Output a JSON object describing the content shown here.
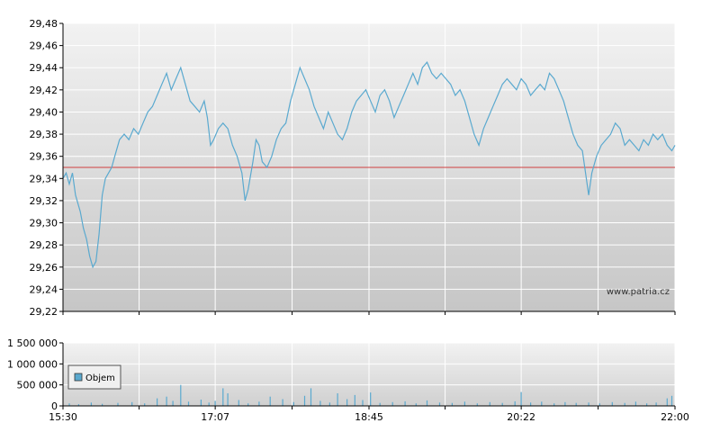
{
  "watermark": "www.patria.cz",
  "colors": {
    "line": "#5aa9cf",
    "reference": "#d04040",
    "volume": "#5aa9cf",
    "grid": "#ffffff",
    "axis": "#000000",
    "bg_top": "#f0f0f0",
    "bg_bottom": "#c8c8c8"
  },
  "chart_data": [
    {
      "type": "line",
      "name": "price",
      "ylim": [
        29.22,
        29.48
      ],
      "y_ticks": [
        "29,48",
        "29,46",
        "29,44",
        "29,42",
        "29,40",
        "29,38",
        "29,36",
        "29,34",
        "29,32",
        "29,30",
        "29,28",
        "29,26",
        "29,24",
        "29,22"
      ],
      "reference_line": 29.35,
      "x_range": [
        "15:30",
        "22:00"
      ],
      "points": [
        [
          "15:30",
          29.34
        ],
        [
          "15:32",
          29.345
        ],
        [
          "15:34",
          29.335
        ],
        [
          "15:36",
          29.345
        ],
        [
          "15:38",
          29.325
        ],
        [
          "15:41",
          29.31
        ],
        [
          "15:43",
          29.295
        ],
        [
          "15:45",
          29.285
        ],
        [
          "15:47",
          29.27
        ],
        [
          "15:49",
          29.26
        ],
        [
          "15:51",
          29.265
        ],
        [
          "15:53",
          29.29
        ],
        [
          "15:55",
          29.325
        ],
        [
          "15:57",
          29.34
        ],
        [
          "15:59",
          29.345
        ],
        [
          "16:01",
          29.35
        ],
        [
          "16:03",
          29.36
        ],
        [
          "16:06",
          29.375
        ],
        [
          "16:09",
          29.38
        ],
        [
          "16:12",
          29.375
        ],
        [
          "16:15",
          29.385
        ],
        [
          "16:18",
          29.38
        ],
        [
          "16:21",
          29.39
        ],
        [
          "16:24",
          29.4
        ],
        [
          "16:27",
          29.405
        ],
        [
          "16:30",
          29.415
        ],
        [
          "16:33",
          29.425
        ],
        [
          "16:36",
          29.435
        ],
        [
          "16:39",
          29.42
        ],
        [
          "16:42",
          29.43
        ],
        [
          "16:45",
          29.44
        ],
        [
          "16:48",
          29.425
        ],
        [
          "16:51",
          29.41
        ],
        [
          "16:54",
          29.405
        ],
        [
          "16:57",
          29.4
        ],
        [
          "17:00",
          29.41
        ],
        [
          "17:02",
          29.395
        ],
        [
          "17:04",
          29.37
        ],
        [
          "17:06",
          29.375
        ],
        [
          "17:09",
          29.385
        ],
        [
          "17:12",
          29.39
        ],
        [
          "17:15",
          29.385
        ],
        [
          "17:18",
          29.37
        ],
        [
          "17:21",
          29.36
        ],
        [
          "17:24",
          29.345
        ],
        [
          "17:26",
          29.32
        ],
        [
          "17:28",
          29.33
        ],
        [
          "17:31",
          29.355
        ],
        [
          "17:33",
          29.375
        ],
        [
          "17:35",
          29.37
        ],
        [
          "17:37",
          29.355
        ],
        [
          "17:40",
          29.35
        ],
        [
          "17:43",
          29.36
        ],
        [
          "17:46",
          29.375
        ],
        [
          "17:49",
          29.385
        ],
        [
          "17:52",
          29.39
        ],
        [
          "17:55",
          29.41
        ],
        [
          "17:58",
          29.425
        ],
        [
          "18:01",
          29.44
        ],
        [
          "18:04",
          29.43
        ],
        [
          "18:07",
          29.42
        ],
        [
          "18:10",
          29.405
        ],
        [
          "18:13",
          29.395
        ],
        [
          "18:16",
          29.385
        ],
        [
          "18:19",
          29.4
        ],
        [
          "18:22",
          29.39
        ],
        [
          "18:25",
          29.38
        ],
        [
          "18:28",
          29.375
        ],
        [
          "18:31",
          29.385
        ],
        [
          "18:34",
          29.4
        ],
        [
          "18:37",
          29.41
        ],
        [
          "18:40",
          29.415
        ],
        [
          "18:43",
          29.42
        ],
        [
          "18:46",
          29.41
        ],
        [
          "18:49",
          29.4
        ],
        [
          "18:52",
          29.415
        ],
        [
          "18:55",
          29.42
        ],
        [
          "18:58",
          29.41
        ],
        [
          "19:01",
          29.395
        ],
        [
          "19:04",
          29.405
        ],
        [
          "19:07",
          29.415
        ],
        [
          "19:10",
          29.425
        ],
        [
          "19:13",
          29.435
        ],
        [
          "19:16",
          29.425
        ],
        [
          "19:19",
          29.44
        ],
        [
          "19:22",
          29.445
        ],
        [
          "19:25",
          29.435
        ],
        [
          "19:28",
          29.43
        ],
        [
          "19:31",
          29.435
        ],
        [
          "19:34",
          29.43
        ],
        [
          "19:37",
          29.425
        ],
        [
          "19:40",
          29.415
        ],
        [
          "19:43",
          29.42
        ],
        [
          "19:46",
          29.41
        ],
        [
          "19:49",
          29.395
        ],
        [
          "19:52",
          29.38
        ],
        [
          "19:55",
          29.37
        ],
        [
          "19:58",
          29.385
        ],
        [
          "20:01",
          29.395
        ],
        [
          "20:04",
          29.405
        ],
        [
          "20:07",
          29.415
        ],
        [
          "20:10",
          29.425
        ],
        [
          "20:13",
          29.43
        ],
        [
          "20:16",
          29.425
        ],
        [
          "20:19",
          29.42
        ],
        [
          "20:22",
          29.43
        ],
        [
          "20:25",
          29.425
        ],
        [
          "20:28",
          29.415
        ],
        [
          "20:31",
          29.42
        ],
        [
          "20:34",
          29.425
        ],
        [
          "20:37",
          29.42
        ],
        [
          "20:40",
          29.435
        ],
        [
          "20:43",
          29.43
        ],
        [
          "20:46",
          29.42
        ],
        [
          "20:49",
          29.41
        ],
        [
          "20:52",
          29.395
        ],
        [
          "20:55",
          29.38
        ],
        [
          "20:58",
          29.37
        ],
        [
          "21:01",
          29.365
        ],
        [
          "21:03",
          29.345
        ],
        [
          "21:05",
          29.325
        ],
        [
          "21:07",
          29.345
        ],
        [
          "21:10",
          29.36
        ],
        [
          "21:13",
          29.37
        ],
        [
          "21:16",
          29.375
        ],
        [
          "21:19",
          29.38
        ],
        [
          "21:22",
          29.39
        ],
        [
          "21:25",
          29.385
        ],
        [
          "21:28",
          29.37
        ],
        [
          "21:31",
          29.375
        ],
        [
          "21:34",
          29.37
        ],
        [
          "21:37",
          29.365
        ],
        [
          "21:40",
          29.375
        ],
        [
          "21:43",
          29.37
        ],
        [
          "21:46",
          29.38
        ],
        [
          "21:49",
          29.375
        ],
        [
          "21:52",
          29.38
        ],
        [
          "21:55",
          29.37
        ],
        [
          "21:58",
          29.365
        ],
        [
          "22:00",
          29.37
        ]
      ]
    },
    {
      "type": "bar",
      "name": "volume",
      "ylim": [
        0,
        1500000
      ],
      "y_ticks": [
        "1 500 000",
        "1 000 000",
        "500 000",
        "0"
      ],
      "x_ticks": [
        "15:30",
        "17:07",
        "18:45",
        "20:22",
        "22:00"
      ],
      "legend": "Objem",
      "legend_position": "left",
      "bars": [
        [
          "15:34",
          60000
        ],
        [
          "15:40",
          40000
        ],
        [
          "15:48",
          80000
        ],
        [
          "15:55",
          50000
        ],
        [
          "16:05",
          70000
        ],
        [
          "16:14",
          90000
        ],
        [
          "16:22",
          60000
        ],
        [
          "16:30",
          180000
        ],
        [
          "16:36",
          220000
        ],
        [
          "16:40",
          120000
        ],
        [
          "16:45",
          500000
        ],
        [
          "16:50",
          100000
        ],
        [
          "16:58",
          150000
        ],
        [
          "17:03",
          80000
        ],
        [
          "17:07",
          120000
        ],
        [
          "17:12",
          420000
        ],
        [
          "17:15",
          300000
        ],
        [
          "17:22",
          140000
        ],
        [
          "17:28",
          60000
        ],
        [
          "17:35",
          100000
        ],
        [
          "17:42",
          220000
        ],
        [
          "17:50",
          160000
        ],
        [
          "17:57",
          90000
        ],
        [
          "18:04",
          240000
        ],
        [
          "18:08",
          420000
        ],
        [
          "18:14",
          120000
        ],
        [
          "18:20",
          80000
        ],
        [
          "18:25",
          300000
        ],
        [
          "18:31",
          160000
        ],
        [
          "18:36",
          260000
        ],
        [
          "18:41",
          140000
        ],
        [
          "18:46",
          320000
        ],
        [
          "18:52",
          70000
        ],
        [
          "19:00",
          90000
        ],
        [
          "19:08",
          110000
        ],
        [
          "19:15",
          60000
        ],
        [
          "19:22",
          130000
        ],
        [
          "19:30",
          80000
        ],
        [
          "19:38",
          70000
        ],
        [
          "19:46",
          100000
        ],
        [
          "19:54",
          60000
        ],
        [
          "20:02",
          90000
        ],
        [
          "20:10",
          70000
        ],
        [
          "20:18",
          110000
        ],
        [
          "20:22",
          330000
        ],
        [
          "20:28",
          80000
        ],
        [
          "20:35",
          100000
        ],
        [
          "20:43",
          60000
        ],
        [
          "20:50",
          90000
        ],
        [
          "20:57",
          70000
        ],
        [
          "21:05",
          80000
        ],
        [
          "21:12",
          60000
        ],
        [
          "21:20",
          90000
        ],
        [
          "21:28",
          70000
        ],
        [
          "21:35",
          100000
        ],
        [
          "21:42",
          60000
        ],
        [
          "21:48",
          80000
        ],
        [
          "21:55",
          180000
        ],
        [
          "21:58",
          240000
        ]
      ]
    }
  ]
}
